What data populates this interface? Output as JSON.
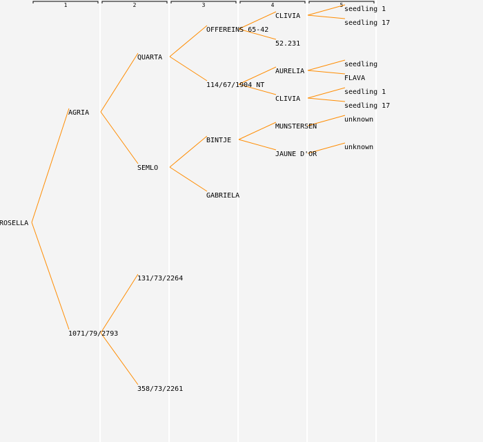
{
  "colors": {
    "background": "#f4f4f4",
    "edge": "#ff8c00",
    "column_divider": "#ffffff",
    "generation_bracket": "#000000",
    "text": "#000000"
  },
  "generations": [
    "1",
    "2",
    "3",
    "4",
    "5"
  ],
  "nodes": [
    {
      "id": "n0",
      "label": "ROSELLA",
      "gen": 0,
      "parent": null
    },
    {
      "id": "n1",
      "label": "AGRIA",
      "gen": 1,
      "parent": "n0"
    },
    {
      "id": "n2",
      "label": "1071/79/2793",
      "gen": 1,
      "parent": "n0"
    },
    {
      "id": "n3",
      "label": "QUARTA",
      "gen": 2,
      "parent": "n1"
    },
    {
      "id": "n4",
      "label": "SEMLO",
      "gen": 2,
      "parent": "n1"
    },
    {
      "id": "n5",
      "label": "131/73/2264",
      "gen": 2,
      "parent": "n2"
    },
    {
      "id": "n6",
      "label": "358/73/2261",
      "gen": 2,
      "parent": "n2"
    },
    {
      "id": "n7",
      "label": "OFFEREINS 65-42",
      "gen": 3,
      "parent": "n3"
    },
    {
      "id": "n8",
      "label": "114/67/1904 NT",
      "gen": 3,
      "parent": "n3"
    },
    {
      "id": "n9",
      "label": "BINTJE",
      "gen": 3,
      "parent": "n4"
    },
    {
      "id": "n10",
      "label": "GABRIELA",
      "gen": 3,
      "parent": "n4"
    },
    {
      "id": "n11",
      "label": "CLIVIA",
      "gen": 4,
      "parent": "n7"
    },
    {
      "id": "n12",
      "label": "52.231",
      "gen": 4,
      "parent": "n7"
    },
    {
      "id": "n13",
      "label": "AURELIA",
      "gen": 4,
      "parent": "n8"
    },
    {
      "id": "n14",
      "label": "CLIVIA",
      "gen": 4,
      "parent": "n8"
    },
    {
      "id": "n15",
      "label": "MUNSTERSEN",
      "gen": 4,
      "parent": "n9"
    },
    {
      "id": "n16",
      "label": "JAUNE D'OR",
      "gen": 4,
      "parent": "n9"
    },
    {
      "id": "n17",
      "label": "seedling 1",
      "gen": 5,
      "parent": "n11"
    },
    {
      "id": "n18",
      "label": "seedling 17",
      "gen": 5,
      "parent": "n11"
    },
    {
      "id": "n19",
      "label": "seedling",
      "gen": 5,
      "parent": "n13"
    },
    {
      "id": "n20",
      "label": "FLAVA",
      "gen": 5,
      "parent": "n13"
    },
    {
      "id": "n21",
      "label": "seedling 1",
      "gen": 5,
      "parent": "n14"
    },
    {
      "id": "n22",
      "label": "seedling 17",
      "gen": 5,
      "parent": "n14"
    },
    {
      "id": "n23",
      "label": "unknown",
      "gen": 5,
      "parent": "n15"
    },
    {
      "id": "n24",
      "label": "unknown",
      "gen": 5,
      "parent": "n16"
    }
  ]
}
